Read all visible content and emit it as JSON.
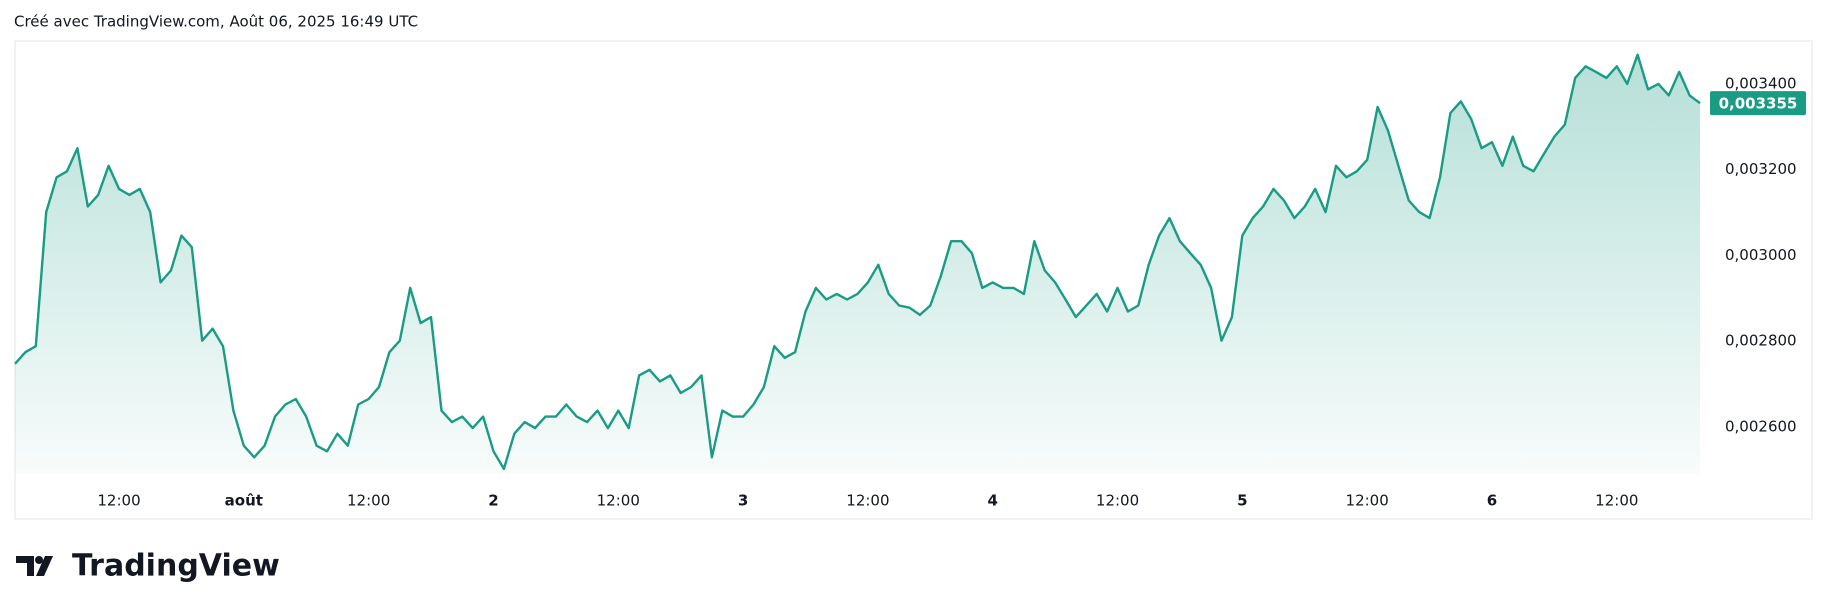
{
  "header": "Créé avec TradingView.com, Août 06, 2025 16:49 UTC",
  "logo": "TradingView",
  "chart_data": {
    "type": "area",
    "categories": [
      null,
      null,
      null,
      null,
      null,
      null,
      null,
      null,
      null,
      null,
      "12:00",
      null,
      null,
      null,
      null,
      null,
      null,
      null,
      null,
      null,
      null,
      null,
      "août",
      null,
      null,
      null,
      null,
      null,
      null,
      null,
      null,
      null,
      null,
      null,
      "12:00",
      null,
      null,
      null,
      null,
      null,
      null,
      null,
      null,
      null,
      null,
      null,
      "2",
      null,
      null,
      null,
      null,
      null,
      null,
      null,
      null,
      null,
      null,
      null,
      "12:00",
      null,
      null,
      null,
      null,
      null,
      null,
      null,
      null,
      null,
      null,
      null,
      "3",
      null,
      null,
      null,
      null,
      null,
      null,
      null,
      null,
      null,
      null,
      null,
      "12:00",
      null,
      null,
      null,
      null,
      null,
      null,
      null,
      null,
      null,
      null,
      null,
      "4",
      null,
      null,
      null,
      null,
      null,
      null,
      null,
      null,
      null,
      null,
      null,
      "12:00",
      null,
      null,
      null,
      null,
      null,
      null,
      null,
      null,
      null,
      null,
      null,
      "5",
      null,
      null,
      null,
      null,
      null,
      null,
      null,
      null,
      null,
      null,
      null,
      "12:00",
      null,
      null,
      null,
      null,
      null,
      null,
      null,
      null,
      null,
      null,
      null,
      "6",
      null,
      null,
      null,
      null,
      null,
      null,
      null,
      null,
      null,
      null,
      null,
      "12:00",
      null,
      null,
      null,
      null,
      null,
      null,
      null,
      null
    ],
    "series": [
      {
        "color": "#1a9c84",
        "values": [
          0.002747,
          0.002774,
          0.002788,
          0.003101,
          0.003182,
          0.003196,
          0.00325,
          0.003114,
          0.003141,
          0.003209,
          0.003155,
          0.003141,
          0.003155,
          0.003101,
          0.002937,
          0.002965,
          0.003046,
          0.003019,
          0.002801,
          0.002829,
          0.002788,
          0.002638,
          0.002556,
          0.002529,
          0.002556,
          0.002624,
          0.002652,
          0.002665,
          0.002624,
          0.002556,
          0.002543,
          0.002584,
          0.002556,
          0.002652,
          0.002665,
          0.002693,
          0.002774,
          0.002801,
          0.002924,
          0.002842,
          0.002856,
          0.002638,
          0.002611,
          0.002624,
          0.002597,
          0.002624,
          0.002543,
          0.002502,
          0.002584,
          0.002611,
          0.002597,
          0.002624,
          0.002624,
          0.002652,
          0.002624,
          0.002611,
          0.002638,
          0.002597,
          0.002638,
          0.002597,
          0.00272,
          0.002733,
          0.002706,
          0.00272,
          0.002679,
          0.002693,
          0.00272,
          0.002529,
          0.002638,
          0.002624,
          0.002624,
          0.002652,
          0.002693,
          0.002788,
          0.002761,
          0.002774,
          0.002869,
          0.002924,
          0.002897,
          0.00291,
          0.002897,
          0.00291,
          0.002937,
          0.002978,
          0.00291,
          0.002883,
          0.002878,
          0.002861,
          0.002883,
          0.002951,
          0.003033,
          0.003033,
          0.003005,
          0.002924,
          0.002937,
          0.002924,
          0.002924,
          0.00291,
          0.003033,
          0.002965,
          0.002937,
          0.002897,
          0.002856,
          0.002883,
          0.00291,
          0.002869,
          0.002924,
          0.002869,
          0.002883,
          0.002978,
          0.003046,
          0.003087,
          0.003033,
          0.003005,
          0.002978,
          0.002924,
          0.002801,
          0.002856,
          0.003046,
          0.003087,
          0.003114,
          0.003155,
          0.003128,
          0.003087,
          0.003114,
          0.003155,
          0.003101,
          0.003209,
          0.003182,
          0.003196,
          0.003223,
          0.003346,
          0.003291,
          0.003209,
          0.003128,
          0.003101,
          0.003087,
          0.003182,
          0.003332,
          0.003359,
          0.003318,
          0.00325,
          0.003264,
          0.003209,
          0.003277,
          0.003209,
          0.003196,
          0.003237,
          0.003277,
          0.003305,
          0.003414,
          0.003441,
          0.003428,
          0.003414,
          0.003441,
          0.0034,
          0.003468,
          0.003387,
          0.0034,
          0.003373,
          0.003428,
          0.003373,
          0.003355
        ]
      }
    ],
    "last_value_label": "0,003355",
    "ylim": [
      0.00249,
      0.0035
    ],
    "yticks": [
      {
        "value": 0.0026,
        "label": "0,002600"
      },
      {
        "value": 0.0028,
        "label": "0,002800"
      },
      {
        "value": 0.003,
        "label": "0,003000"
      },
      {
        "value": 0.0032,
        "label": "0,003200"
      },
      {
        "value": 0.0034,
        "label": "0,003400"
      }
    ],
    "grid": false
  }
}
